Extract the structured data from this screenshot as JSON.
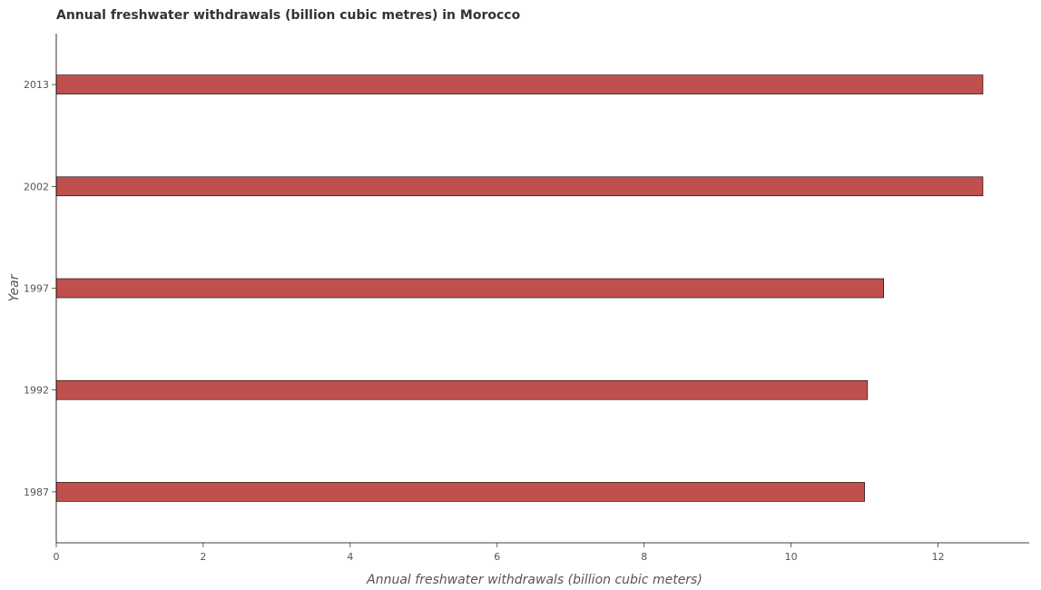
{
  "chart_data": {
    "type": "bar",
    "orientation": "horizontal",
    "title": "Annual freshwater withdrawals (billion cubic metres) in Morocco",
    "xlabel": "Annual freshwater withdrawals (billion cubic meters)",
    "ylabel": "Year",
    "categories": [
      "1987",
      "1992",
      "1997",
      "2002",
      "2013"
    ],
    "values": [
      11.0,
      11.04,
      11.26,
      12.61,
      12.61
    ],
    "xlim": [
      0,
      13.24
    ],
    "xticks": [
      0,
      2,
      4,
      6,
      8,
      10,
      12
    ],
    "bar_color": "#c0504d",
    "grid": false
  }
}
